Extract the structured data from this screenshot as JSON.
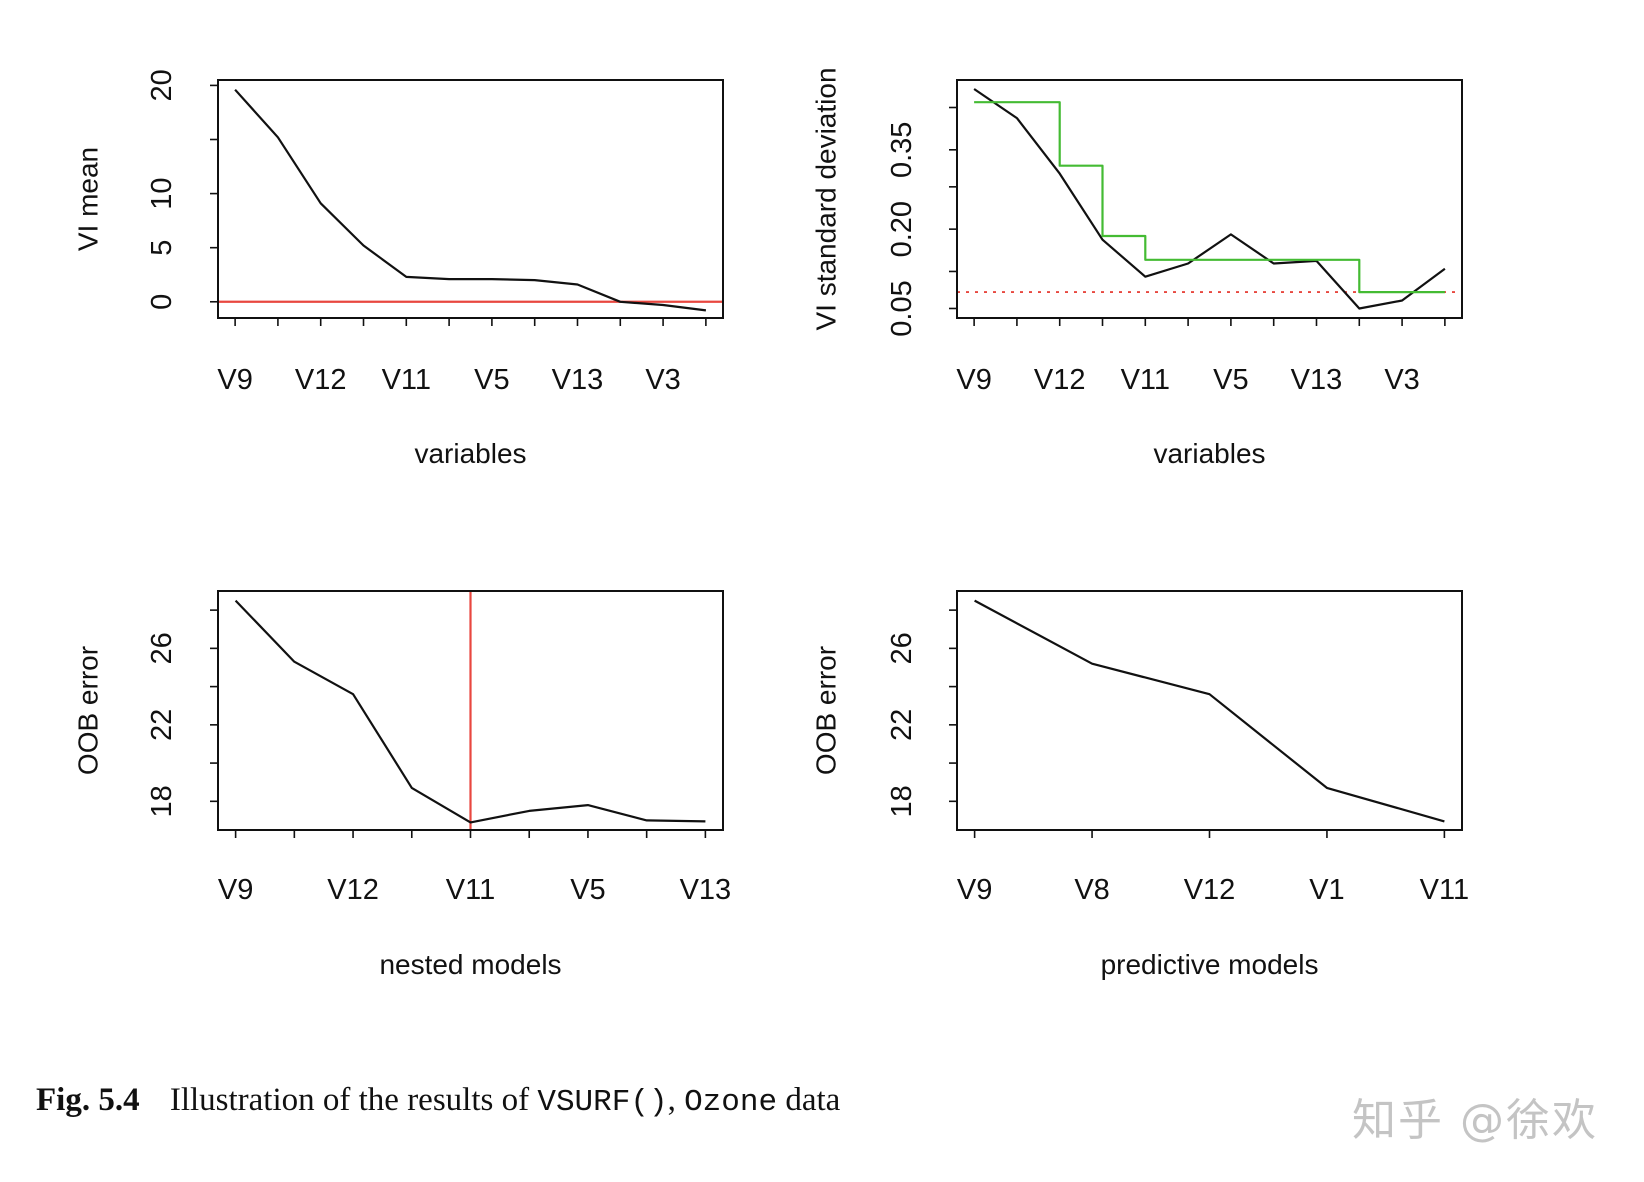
{
  "chart_data": [
    {
      "type": "line",
      "id": "vi-mean",
      "xlabel": "variables",
      "ylabel": "VI mean",
      "x": [
        1,
        2,
        3,
        4,
        5,
        6,
        7,
        8,
        9,
        10,
        11,
        12
      ],
      "xlim": [
        0.6,
        12.4
      ],
      "ylim": [
        -1.5,
        20.5
      ],
      "xticks": [
        1,
        2,
        3,
        4,
        5,
        6,
        7,
        8,
        9,
        10,
        11,
        12
      ],
      "xtick_labels": [
        {
          "at": 1,
          "text": "V9"
        },
        {
          "at": 3,
          "text": "V12"
        },
        {
          "at": 5,
          "text": "V11"
        },
        {
          "at": 7,
          "text": "V5"
        },
        {
          "at": 9,
          "text": "V13"
        },
        {
          "at": 11,
          "text": "V3"
        }
      ],
      "yticks": [
        0,
        5,
        10,
        15,
        20
      ],
      "ytick_labels": [
        {
          "at": 0,
          "text": "0"
        },
        {
          "at": 5,
          "text": "5"
        },
        {
          "at": 10,
          "text": "10"
        },
        {
          "at": 20,
          "text": "20"
        }
      ],
      "series": [
        {
          "name": "VI mean",
          "color": "#111111",
          "values": [
            19.6,
            15.2,
            9.1,
            5.2,
            2.3,
            2.1,
            2.1,
            2.0,
            1.6,
            0.0,
            -0.3,
            -0.8
          ]
        }
      ],
      "hlines": [
        {
          "y": 0,
          "color": "#e8473f",
          "dash": ""
        }
      ],
      "vlines": []
    },
    {
      "type": "line",
      "id": "vi-sd",
      "xlabel": "variables",
      "ylabel": "VI standard deviation",
      "x": [
        1,
        2,
        3,
        4,
        5,
        6,
        7,
        8,
        9,
        10,
        11,
        12
      ],
      "xlim": [
        0.6,
        12.4
      ],
      "ylim": [
        0.032,
        0.482
      ],
      "xticks": [
        1,
        2,
        3,
        4,
        5,
        6,
        7,
        8,
        9,
        10,
        11,
        12
      ],
      "xtick_labels": [
        {
          "at": 1,
          "text": "V9"
        },
        {
          "at": 3,
          "text": "V12"
        },
        {
          "at": 5,
          "text": "V11"
        },
        {
          "at": 7,
          "text": "V5"
        },
        {
          "at": 9,
          "text": "V13"
        },
        {
          "at": 11,
          "text": "V3"
        }
      ],
      "yticks": [
        0.05,
        0.12,
        0.2,
        0.28,
        0.35,
        0.43
      ],
      "ytick_labels": [
        {
          "at": 0.05,
          "text": "0.05"
        },
        {
          "at": 0.2,
          "text": "0.20"
        },
        {
          "at": 0.35,
          "text": "0.35"
        }
      ],
      "series": [
        {
          "name": "VI standard deviation",
          "color": "#111111",
          "values": [
            0.465,
            0.41,
            0.305,
            0.18,
            0.11,
            0.135,
            0.19,
            0.135,
            0.14,
            0.05,
            0.065,
            0.125
          ]
        },
        {
          "name": "step fit",
          "color": "#44bb33",
          "step": true,
          "step_x": [
            1,
            3,
            3,
            4,
            4,
            5,
            5,
            10,
            10,
            12
          ],
          "step_y": [
            0.44,
            0.44,
            0.32,
            0.32,
            0.187,
            0.187,
            0.142,
            0.142,
            0.081,
            0.081
          ]
        }
      ],
      "hlines": [
        {
          "y": 0.081,
          "color": "#e8473f",
          "dash": "3,6"
        }
      ],
      "vlines": []
    },
    {
      "type": "line",
      "id": "nested-models",
      "xlabel": "nested models",
      "ylabel": "OOB error",
      "x": [
        1,
        2,
        3,
        4,
        5,
        6,
        7,
        8,
        9
      ],
      "xlim": [
        0.7,
        9.3
      ],
      "ylim": [
        16.5,
        29.0
      ],
      "xticks": [
        1,
        2,
        3,
        4,
        5,
        6,
        7,
        8,
        9
      ],
      "xtick_labels": [
        {
          "at": 1,
          "text": "V9"
        },
        {
          "at": 3,
          "text": "V12"
        },
        {
          "at": 5,
          "text": "V11"
        },
        {
          "at": 7,
          "text": "V5"
        },
        {
          "at": 9,
          "text": "V13"
        }
      ],
      "yticks": [
        18,
        20,
        22,
        24,
        26,
        28
      ],
      "ytick_labels": [
        {
          "at": 18,
          "text": "18"
        },
        {
          "at": 22,
          "text": "22"
        },
        {
          "at": 26,
          "text": "26"
        }
      ],
      "series": [
        {
          "name": "OOB error",
          "color": "#111111",
          "values": [
            28.5,
            25.3,
            23.6,
            18.7,
            16.9,
            17.5,
            17.8,
            17.0,
            16.95
          ]
        }
      ],
      "hlines": [],
      "vlines": [
        {
          "x": 5,
          "color": "#e8473f"
        }
      ]
    },
    {
      "type": "line",
      "id": "predictive-models",
      "xlabel": "predictive models",
      "ylabel": "OOB error",
      "x": [
        1,
        2,
        3,
        4,
        5
      ],
      "xlim": [
        0.85,
        5.15
      ],
      "ylim": [
        16.5,
        29.0
      ],
      "xticks": [
        1,
        2,
        3,
        4,
        5
      ],
      "xtick_labels": [
        {
          "at": 1,
          "text": "V9"
        },
        {
          "at": 2,
          "text": "V8"
        },
        {
          "at": 3,
          "text": "V12"
        },
        {
          "at": 4,
          "text": "V1"
        },
        {
          "at": 5,
          "text": "V11"
        }
      ],
      "yticks": [
        18,
        20,
        22,
        24,
        26,
        28
      ],
      "ytick_labels": [
        {
          "at": 18,
          "text": "18"
        },
        {
          "at": 22,
          "text": "22"
        },
        {
          "at": 26,
          "text": "26"
        }
      ],
      "series": [
        {
          "name": "OOB error",
          "color": "#111111",
          "values": [
            28.5,
            25.2,
            23.6,
            18.7,
            16.95
          ]
        }
      ],
      "hlines": [],
      "vlines": []
    }
  ],
  "caption": {
    "label": "Fig. 5.4",
    "text_before": "Illustration of the results of",
    "func": "VSURF()",
    "comma": ",",
    "dataset": "Ozone",
    "text_after": "data"
  },
  "watermark": "知乎 @徐欢"
}
